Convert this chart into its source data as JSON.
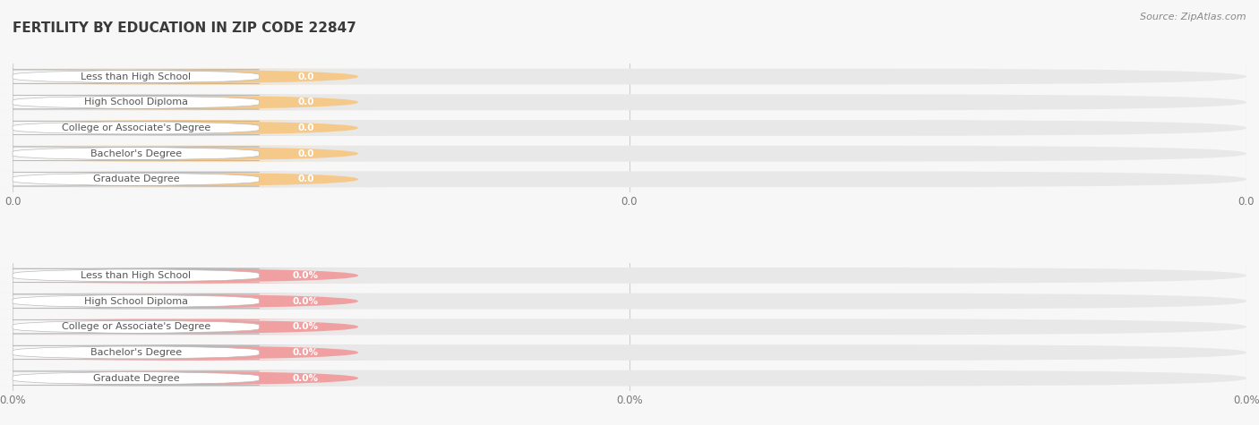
{
  "title": "FERTILITY BY EDUCATION IN ZIP CODE 22847",
  "source": "Source: ZipAtlas.com",
  "categories": [
    "Less than High School",
    "High School Diploma",
    "College or Associate's Degree",
    "Bachelor's Degree",
    "Graduate Degree"
  ],
  "values_top": [
    0.0,
    0.0,
    0.0,
    0.0,
    0.0
  ],
  "values_bottom": [
    0.0,
    0.0,
    0.0,
    0.0,
    0.0
  ],
  "bar_color_top": "#F5C98A",
  "bar_color_bottom": "#F0A0A0",
  "bar_track_color": "#E8E8E8",
  "grid_color": "#CCCCCC",
  "xtick_labels_top": [
    "0.0",
    "0.0",
    "0.0"
  ],
  "xtick_labels_bottom": [
    "0.0%",
    "0.0%",
    "0.0%"
  ],
  "title_fontsize": 11,
  "label_fontsize": 8,
  "value_fontsize": 7.5,
  "tick_fontsize": 8.5,
  "source_fontsize": 8,
  "background_color": "#F7F7F7",
  "white": "#FFFFFF",
  "label_text_color": "#555555",
  "value_text_color": "#FFFFFF",
  "tick_color": "#777777"
}
